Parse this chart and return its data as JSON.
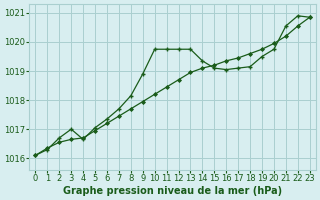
{
  "title": "Graphe pression niveau de la mer (hPa)",
  "background_color": "#d8eef0",
  "plot_bg_color": "#d8eef0",
  "grid_color": "#aacfcf",
  "line_color": "#1a5c1a",
  "xlim": [
    -0.5,
    23.5
  ],
  "ylim": [
    1015.6,
    1021.3
  ],
  "xticks": [
    0,
    1,
    2,
    3,
    4,
    5,
    6,
    7,
    8,
    9,
    10,
    11,
    12,
    13,
    14,
    15,
    16,
    17,
    18,
    19,
    20,
    21,
    22,
    23
  ],
  "yticks": [
    1016,
    1017,
    1018,
    1019,
    1020,
    1021
  ],
  "series1_x": [
    0,
    1,
    2,
    3,
    4,
    5,
    6,
    7,
    8,
    9,
    10,
    11,
    12,
    13,
    14,
    15,
    16,
    17,
    18,
    19,
    20,
    21,
    22,
    23
  ],
  "series1_y": [
    1016.1,
    1016.3,
    1016.7,
    1017.0,
    1016.65,
    1017.05,
    1017.35,
    1017.7,
    1018.15,
    1018.9,
    1019.75,
    1019.75,
    1019.75,
    1019.75,
    1019.35,
    1019.1,
    1019.05,
    1019.1,
    1019.15,
    1019.5,
    1019.75,
    1020.55,
    1020.9,
    1020.85
  ],
  "series2_x": [
    0,
    1,
    2,
    3,
    4,
    5,
    6,
    7,
    8,
    9,
    10,
    11,
    12,
    13,
    14,
    15,
    16,
    17,
    18,
    19,
    20,
    21,
    22,
    23
  ],
  "series2_y": [
    1016.1,
    1016.35,
    1016.55,
    1016.65,
    1016.7,
    1016.95,
    1017.2,
    1017.45,
    1017.7,
    1017.95,
    1018.2,
    1018.45,
    1018.7,
    1018.95,
    1019.1,
    1019.2,
    1019.35,
    1019.45,
    1019.6,
    1019.75,
    1019.95,
    1020.2,
    1020.55,
    1020.85
  ],
  "xlabel_fontsize": 7.0,
  "tick_fontsize": 6.0
}
